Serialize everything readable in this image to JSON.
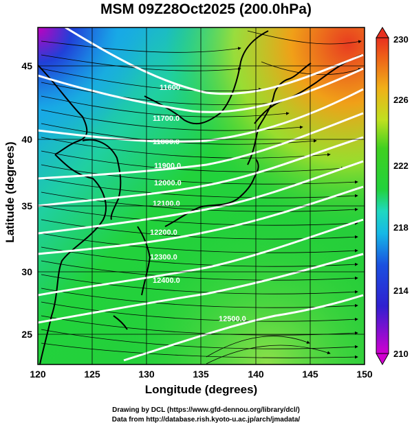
{
  "title": "MSM 09Z28Oct2025 (200.0hPa)",
  "xlabel": "Longitude (degrees)",
  "ylabel": "Latitude  (degrees)",
  "credit_line1": "Drawing by DCL (https://www.gfd-dennou.org/library/dcl/)",
  "credit_line2": "Data from http://database.rish.kyoto-u.ac.jp/arch/jmadata/",
  "x_ticks": [
    "120",
    "125",
    "130",
    "135",
    "140",
    "145",
    "150"
  ],
  "y_ticks": [
    "25",
    "30",
    "35",
    "40",
    "45"
  ],
  "colorbar": {
    "labels": [
      "230",
      "226",
      "222",
      "218",
      "214",
      "210"
    ],
    "min": 210,
    "max": 230
  },
  "contour_labels": [
    "11600",
    "11700.0",
    "11800.0",
    "11900.0",
    "12000.0",
    "12100.0",
    "12200.0",
    "12300.0",
    "12400.0",
    "12500.0"
  ],
  "map": {
    "lon_range": [
      120,
      150
    ],
    "lat_range": [
      22.5,
      48
    ],
    "colormap": [
      "#c000c0",
      "#1a2fd8",
      "#16b8e6",
      "#22d8b0",
      "#22d23c",
      "#b6e02a",
      "#f0a018",
      "#e83c20"
    ]
  }
}
